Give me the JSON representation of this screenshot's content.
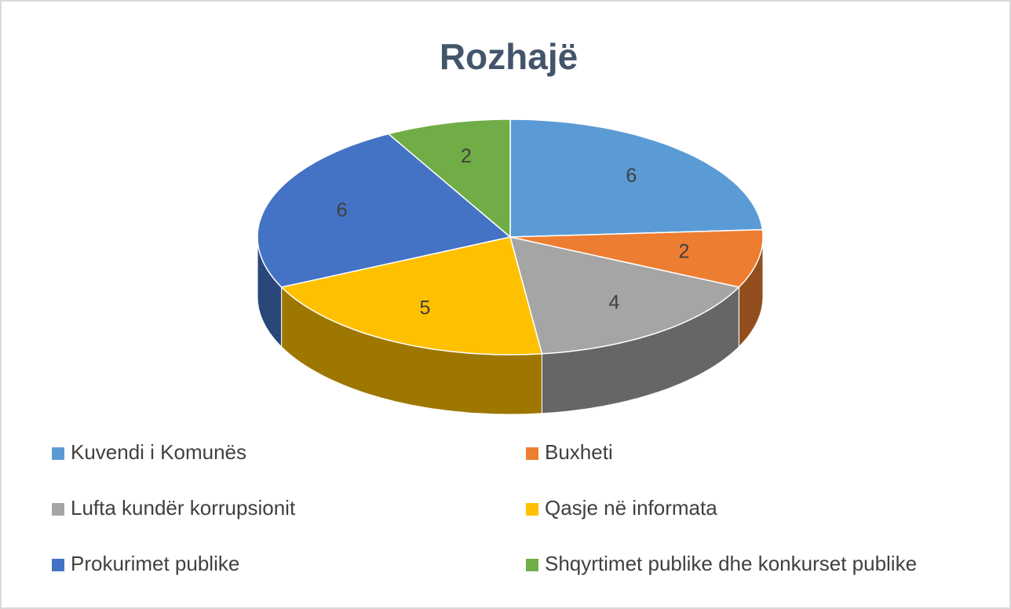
{
  "chart_data": {
    "type": "pie3d",
    "title": "Rozhajë",
    "categories": [
      "Kuvendi i Komunës",
      "Buxheti",
      "Lufta kundër korrupsionit",
      "Qasje në informata",
      "Prokurimet publike",
      "Shqyrtimet publike dhe konkurset publike"
    ],
    "values": [
      6,
      2,
      4,
      5,
      6,
      2
    ],
    "colors": [
      "#5b9bd5",
      "#ed7d31",
      "#a5a5a5",
      "#ffc000",
      "#4472c4",
      "#70ad47"
    ],
    "legend": "bottom"
  }
}
